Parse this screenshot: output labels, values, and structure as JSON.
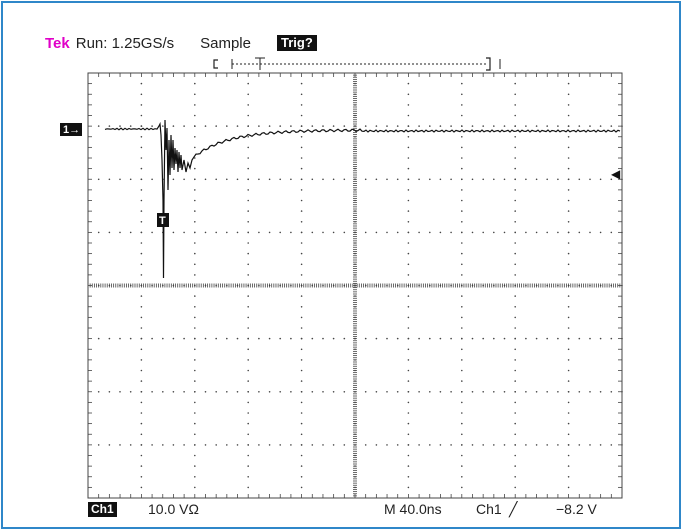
{
  "header": {
    "brand": "Tek",
    "run_status": "Run: 1.25GS/s",
    "acquire_mode": "Sample",
    "trigger_status": "Trig?"
  },
  "footer": {
    "channel_badge": "Ch1",
    "channel_scale": "10.0 VΩ",
    "timebase": "M 40.0ns",
    "trigger_source": "Ch1",
    "trigger_slope": "╱",
    "trigger_level": "−8.2 V"
  },
  "markers": {
    "channel_ground": "1→",
    "trigger_position": "T",
    "trigger_level_arrow": "◀"
  },
  "colors": {
    "frame": "#2f87c9",
    "brand": "#e000c8",
    "trace": "#111111",
    "graticule": "#444444"
  }
}
